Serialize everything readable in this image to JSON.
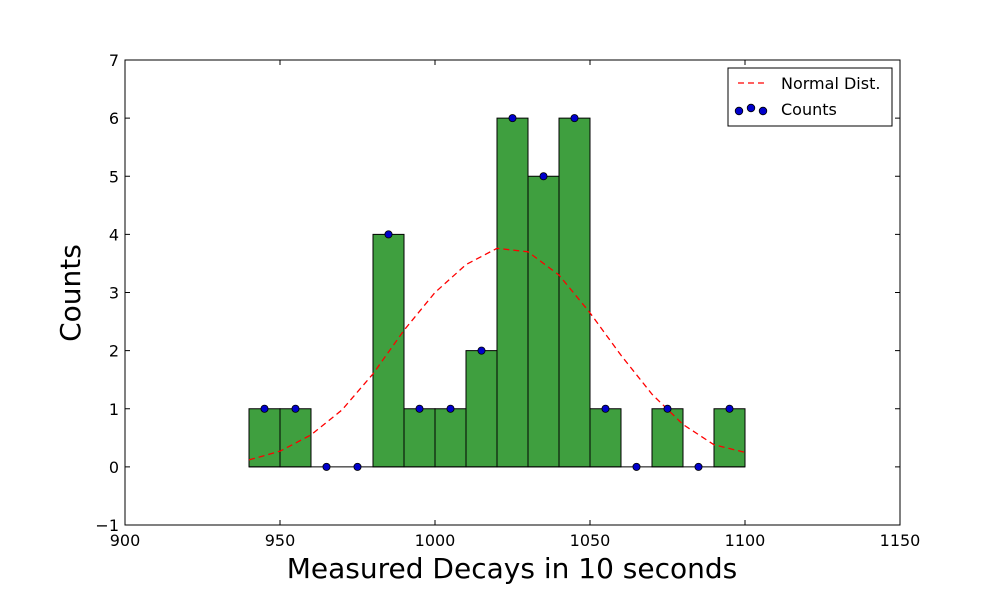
{
  "chart_data": {
    "type": "bar",
    "title": "",
    "xlabel": "Measured Decays in 10 seconds",
    "ylabel": "Counts",
    "xlim": [
      900,
      1150
    ],
    "ylim": [
      -1,
      7
    ],
    "xticks": [
      900,
      950,
      1000,
      1050,
      1100,
      1150
    ],
    "yticks": [
      -1,
      0,
      1,
      2,
      3,
      4,
      5,
      6,
      7
    ],
    "xtick_labels": [
      "900",
      "950",
      "1000",
      "1050",
      "1100",
      "1150"
    ],
    "ytick_labels": [
      "−1",
      "0",
      "1",
      "2",
      "3",
      "4",
      "5",
      "6",
      "7"
    ],
    "grid": false,
    "legend_position": "top-right",
    "bar_color": "#3f9f3f",
    "histogram": {
      "bin_edges": [
        940,
        950,
        960,
        970,
        980,
        990,
        1000,
        1010,
        1020,
        1030,
        1040,
        1050,
        1060,
        1070,
        1080,
        1090,
        1100
      ],
      "counts": [
        1,
        1,
        0,
        0,
        4,
        1,
        1,
        2,
        6,
        5,
        6,
        1,
        0,
        1,
        0,
        1
      ]
    },
    "series": [
      {
        "name": "Normal Dist.",
        "type": "line",
        "color": "#ff0000",
        "style": "dashed",
        "x": [
          940,
          950,
          960,
          970,
          980,
          990,
          1000,
          1010,
          1020,
          1030,
          1040,
          1050,
          1060,
          1070,
          1080,
          1090,
          1100
        ],
        "y": [
          0.12,
          0.27,
          0.55,
          0.98,
          1.6,
          2.35,
          3.0,
          3.48,
          3.76,
          3.7,
          3.3,
          2.65,
          1.92,
          1.25,
          0.73,
          0.38,
          0.25
        ]
      },
      {
        "name": "Counts",
        "type": "scatter",
        "color": "#0000cc",
        "x": [
          945,
          955,
          965,
          975,
          985,
          995,
          1005,
          1015,
          1025,
          1035,
          1045,
          1055,
          1065,
          1075,
          1085,
          1095
        ],
        "y": [
          1,
          1,
          0,
          0,
          4,
          1,
          1,
          2,
          6,
          5,
          6,
          1,
          0,
          1,
          0,
          1
        ]
      }
    ]
  }
}
